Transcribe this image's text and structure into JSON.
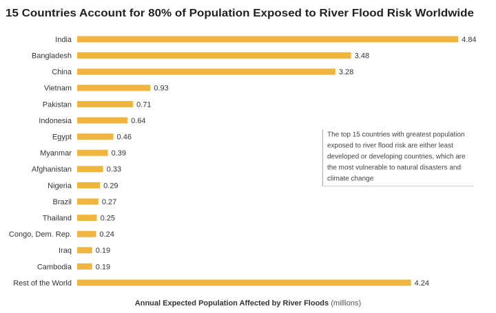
{
  "chart_data": {
    "type": "hbar",
    "title": "15 Countries Account for 80% of Population Exposed to River Flood Risk Worldwide",
    "categories": [
      "India",
      "Bangladesh",
      "China",
      "Vietnam",
      "Pakistan",
      "Indonesia",
      "Egypt",
      "Myanmar",
      "Afghanistan",
      "Nigeria",
      "Brazil",
      "Thailand",
      "Congo, Dem. Rep.",
      "Iraq",
      "Cambodia",
      "Rest of the World"
    ],
    "values": [
      4.84,
      3.48,
      3.28,
      0.93,
      0.71,
      0.64,
      0.46,
      0.39,
      0.33,
      0.29,
      0.27,
      0.25,
      0.24,
      0.19,
      0.19,
      4.24
    ],
    "color": "#efb53e",
    "xlim": [
      0,
      5.25
    ],
    "xlabel": "Annual Expected Population Affected by River Floods",
    "xlabel_unit": "(millions)",
    "annotation": [
      "The top 15 countries with greatest population",
      "exposed to river flood risk are either least",
      "developed or developing countries, which are",
      "the most vulnerable to natural disasters and",
      "climate change"
    ]
  }
}
